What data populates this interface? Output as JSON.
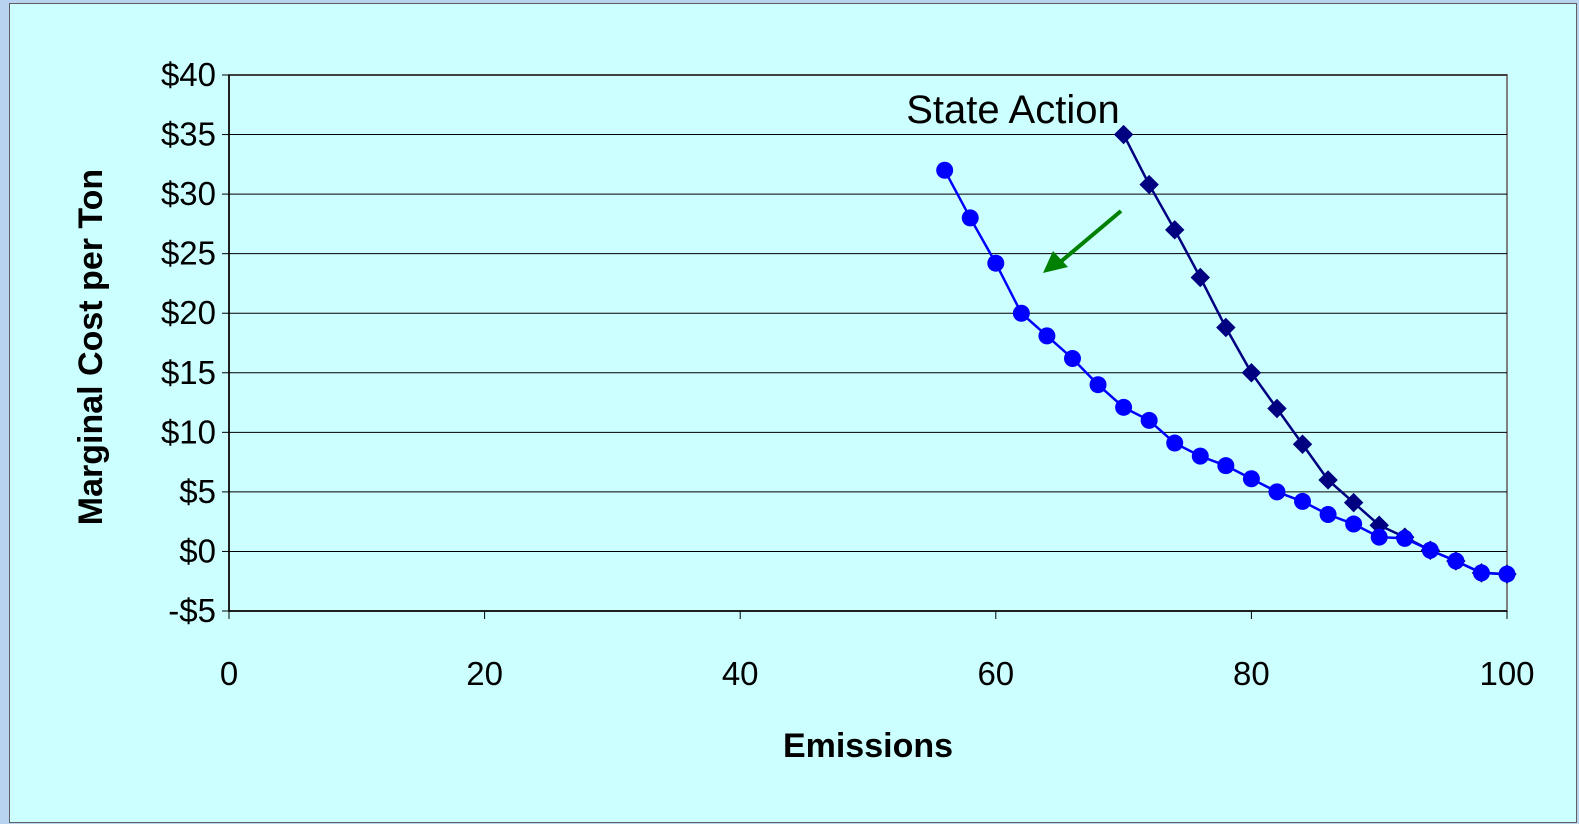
{
  "chart_data": {
    "type": "line",
    "title": "",
    "xlabel": "Emissions",
    "ylabel": "Marginal Cost per Ton",
    "xlim": [
      0,
      100
    ],
    "ylim": [
      -5,
      40
    ],
    "x_ticks": [
      0,
      20,
      40,
      60,
      80,
      100
    ],
    "y_ticks": [
      -5,
      0,
      5,
      10,
      15,
      20,
      25,
      30,
      35,
      40
    ],
    "y_tick_labels": [
      "-$5",
      "$0",
      "$5",
      "$10",
      "$15",
      "$20",
      "$25",
      "$30",
      "$35",
      "$40"
    ],
    "grid": "horizontal",
    "annotation": "State Action",
    "annotation_arrow_color": "#008000",
    "colors": {
      "background": "#ccffff",
      "slide_background": "#b7d3f0",
      "gridline": "#000000"
    },
    "series": [
      {
        "color": "#000080",
        "marker": "diamond",
        "x": [
          70,
          72,
          74,
          76,
          78,
          80,
          82,
          84,
          86,
          88,
          90,
          92,
          94,
          96,
          98,
          100
        ],
        "values": [
          35,
          30.8,
          27,
          23,
          18.8,
          15,
          12,
          9,
          6,
          4.1,
          2.2,
          1.2,
          0.1,
          -0.8,
          -1.8,
          -1.9
        ]
      },
      {
        "color": "#0000ff",
        "marker": "circle",
        "x": [
          56,
          58,
          60,
          62,
          64,
          66,
          68,
          70,
          72,
          74,
          76,
          78,
          80,
          82,
          84,
          86,
          88,
          90,
          92,
          94,
          96,
          98,
          100
        ],
        "values": [
          32,
          28,
          24.2,
          20,
          18.1,
          16.2,
          14,
          12.1,
          11,
          9.1,
          8,
          7.2,
          6.1,
          5,
          4.2,
          3.1,
          2.3,
          1.2,
          1.1,
          0.1,
          -0.8,
          -1.8,
          -1.9
        ]
      }
    ]
  }
}
